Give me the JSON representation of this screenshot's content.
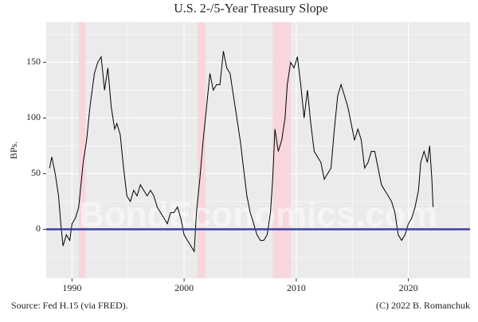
{
  "chart_data": {
    "type": "line",
    "title": "U.S. 2-/5-Year Treasury Slope",
    "ylabel": "BPs.",
    "source": "Source: Fed H.15 (via FRED).",
    "credit": "(C) 2022 B. Romanchuk",
    "watermark": "BondEconomics.com",
    "xlim": [
      1987.7,
      2025.5
    ],
    "ylim": [
      -44,
      186
    ],
    "xticks": [
      1990,
      2000,
      2010,
      2020
    ],
    "yticks": [
      0,
      50,
      100,
      150
    ],
    "xminor": [
      1995,
      2005,
      2015,
      2025
    ],
    "yminor": [
      -25,
      25,
      75,
      125,
      175
    ],
    "grid": true,
    "color": "#000000",
    "hline": 0,
    "hline_color": "#3f3f9f",
    "recession_color": "#f7d6dc",
    "recessions": [
      [
        1990.6,
        1991.2
      ],
      [
        2001.2,
        2001.9
      ],
      [
        2007.9,
        2009.5
      ]
    ],
    "x": [
      1988.0,
      1988.2,
      1988.5,
      1988.8,
      1989.0,
      1989.2,
      1989.5,
      1989.8,
      1990.0,
      1990.3,
      1990.6,
      1991.0,
      1991.3,
      1991.6,
      1992.0,
      1992.3,
      1992.6,
      1992.9,
      1993.2,
      1993.5,
      1993.8,
      1994.0,
      1994.3,
      1994.6,
      1994.9,
      1995.2,
      1995.5,
      1995.8,
      1996.1,
      1996.4,
      1996.7,
      1997.0,
      1997.3,
      1997.6,
      1997.9,
      1998.2,
      1998.5,
      1998.8,
      1999.1,
      1999.4,
      1999.7,
      2000.0,
      2000.3,
      2000.6,
      2000.9,
      2001.1,
      2001.4,
      2001.7,
      2002.0,
      2002.3,
      2002.6,
      2002.9,
      2003.2,
      2003.5,
      2003.8,
      2004.1,
      2004.4,
      2004.7,
      2005.0,
      2005.3,
      2005.6,
      2005.9,
      2006.2,
      2006.5,
      2006.8,
      2007.1,
      2007.4,
      2007.7,
      2007.9,
      2008.1,
      2008.4,
      2008.7,
      2009.0,
      2009.2,
      2009.5,
      2009.8,
      2010.1,
      2010.4,
      2010.7,
      2011.0,
      2011.3,
      2011.6,
      2011.9,
      2012.2,
      2012.5,
      2012.8,
      2013.1,
      2013.4,
      2013.7,
      2014.0,
      2014.3,
      2014.6,
      2014.9,
      2015.2,
      2015.5,
      2015.8,
      2016.1,
      2016.4,
      2016.7,
      2017.0,
      2017.3,
      2017.6,
      2017.9,
      2018.2,
      2018.5,
      2018.8,
      2019.1,
      2019.4,
      2019.7,
      2020.0,
      2020.3,
      2020.6,
      2020.9,
      2021.1,
      2021.4,
      2021.7,
      2021.9,
      2022.1,
      2022.2
    ],
    "values": [
      55,
      65,
      50,
      30,
      5,
      -15,
      -5,
      -10,
      5,
      10,
      20,
      60,
      80,
      110,
      140,
      150,
      155,
      125,
      145,
      110,
      90,
      95,
      85,
      55,
      30,
      25,
      35,
      30,
      40,
      35,
      30,
      35,
      30,
      20,
      15,
      10,
      5,
      15,
      15,
      20,
      10,
      -5,
      -10,
      -15,
      -20,
      15,
      45,
      80,
      110,
      140,
      125,
      130,
      130,
      160,
      145,
      140,
      120,
      100,
      80,
      55,
      30,
      15,
      5,
      -5,
      -10,
      -10,
      -5,
      15,
      45,
      90,
      70,
      80,
      100,
      130,
      150,
      145,
      155,
      130,
      100,
      125,
      95,
      70,
      65,
      60,
      45,
      50,
      55,
      90,
      120,
      130,
      120,
      110,
      95,
      80,
      90,
      80,
      55,
      60,
      70,
      70,
      55,
      40,
      35,
      30,
      25,
      15,
      -5,
      -10,
      -5,
      5,
      10,
      20,
      35,
      60,
      70,
      60,
      75,
      45,
      20
    ]
  }
}
